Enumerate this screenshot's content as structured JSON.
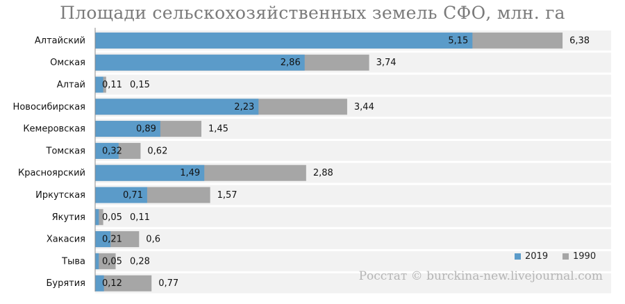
{
  "chart_data": {
    "type": "bar",
    "orientation": "horizontal",
    "title": "Площади сельскохозяйственных земель СФО, млн. га",
    "categories": [
      "Алтайский",
      "Омская",
      "Алтай",
      "Новосибирская",
      "Кемеровская",
      "Томская",
      "Красноярский",
      "Иркутская",
      "Якутия",
      "Хакасия",
      "Тыва",
      "Бурятия"
    ],
    "series": [
      {
        "name": "2019",
        "values": [
          5.15,
          2.86,
          0.11,
          2.23,
          0.89,
          0.32,
          1.49,
          0.71,
          0.05,
          0.21,
          0.05,
          0.12
        ],
        "labels": [
          "5,15",
          "2,86",
          "0,11",
          "2,23",
          "0,89",
          "0,32",
          "1,49",
          "0,71",
          "0,05",
          "0,21",
          "0,05",
          "0,12"
        ]
      },
      {
        "name": "1990",
        "values": [
          6.38,
          3.74,
          0.15,
          3.44,
          1.45,
          0.62,
          2.88,
          1.57,
          0.11,
          0.6,
          0.28,
          0.77
        ],
        "labels": [
          "6,38",
          "3,74",
          "0,15",
          "3,44",
          "1,45",
          "0,62",
          "2,88",
          "1,57",
          "0,11",
          "0,6",
          "0,28",
          "0,77"
        ]
      }
    ],
    "xlim": [
      0,
      7
    ],
    "grid": false,
    "legend_position": "bottom-right",
    "colors": {
      "2019": "#5b9bc9",
      "1990": "#a6a6a6",
      "background": "#f2f2f2"
    }
  },
  "source": "Росстат © burckina-new.livejournal.com"
}
